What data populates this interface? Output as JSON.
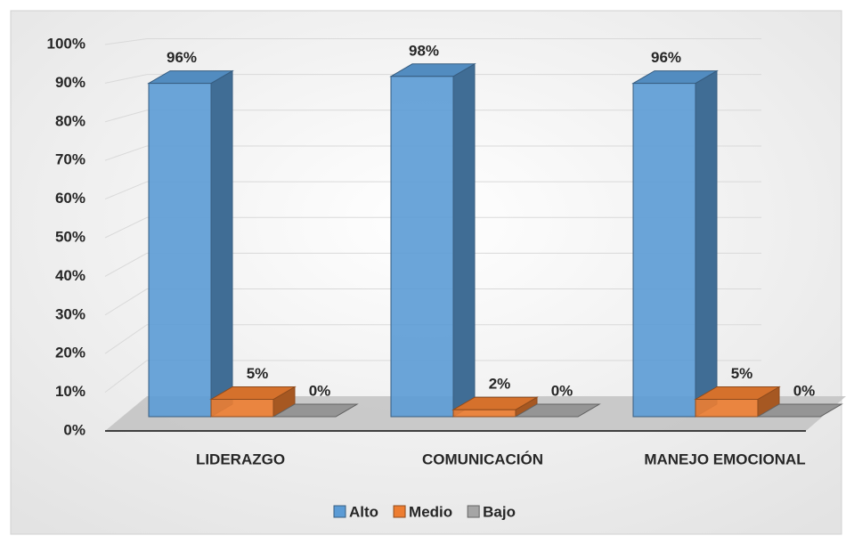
{
  "chart_data": {
    "type": "bar3d",
    "categories": [
      "LIDERAZGO",
      "COMUNICACIÓN",
      "MANEJO EMOCIONAL"
    ],
    "series": [
      {
        "name": "Alto",
        "color": "#5b9bd5",
        "values": [
          96,
          98,
          96
        ],
        "value_labels": [
          "96%",
          "98%",
          "96%"
        ]
      },
      {
        "name": "Medio",
        "color": "#ed7d31",
        "values": [
          5,
          2,
          5
        ],
        "value_labels": [
          "5%",
          "2%",
          "5%"
        ]
      },
      {
        "name": "Bajo",
        "color": "#a5a5a5",
        "values": [
          0,
          0,
          0
        ],
        "value_labels": [
          "0%",
          "0%",
          "0%"
        ]
      }
    ],
    "ylim": [
      0,
      100
    ],
    "yticks": [
      {
        "value": 0,
        "label": "0%"
      },
      {
        "value": 10,
        "label": "10%"
      },
      {
        "value": 20,
        "label": "20%"
      },
      {
        "value": 30,
        "label": "30%"
      },
      {
        "value": 40,
        "label": "40%"
      },
      {
        "value": 50,
        "label": "50%"
      },
      {
        "value": 60,
        "label": "60%"
      },
      {
        "value": 70,
        "label": "70%"
      },
      {
        "value": 80,
        "label": "80%"
      },
      {
        "value": 90,
        "label": "90%"
      },
      {
        "value": 100,
        "label": "100%"
      }
    ],
    "grid": true,
    "legend": "bottom"
  }
}
